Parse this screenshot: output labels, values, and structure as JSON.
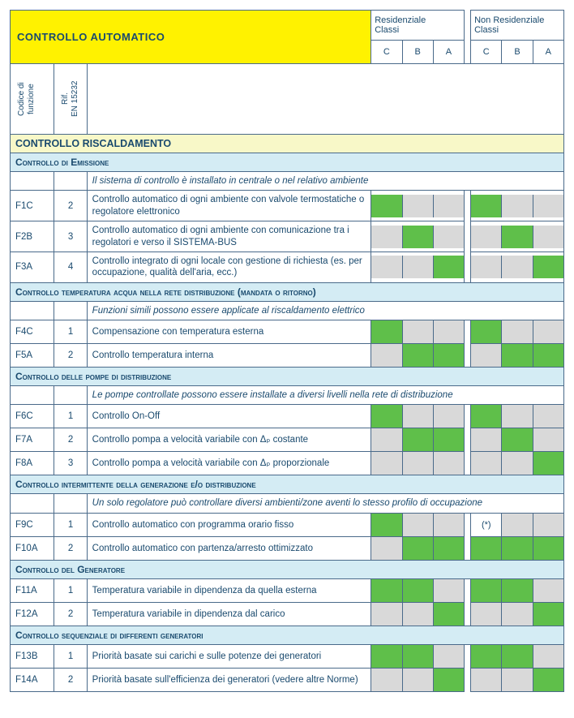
{
  "colors": {
    "green": "#5fbf4a",
    "gray": "#d9d9d9",
    "white": "#ffffff"
  },
  "title": "CONTROLLO AUTOMATICO",
  "header": {
    "res": "Residenziale\nClassi",
    "nonres": "Non Residenziale\nClassi",
    "classes": [
      "C",
      "B",
      "A"
    ]
  },
  "vlabels": {
    "code": "Codice di\nfunzione",
    "ref": "Rif.\nEN 15232"
  },
  "sections": [
    {
      "type": "yellow",
      "label": "CONTROLLO RISCALDAMENTO"
    },
    {
      "type": "blue",
      "label": "Controllo di Emissione"
    },
    {
      "type": "note",
      "text": "Il sistema di controllo è installato in centrale o nel relativo ambiente"
    },
    {
      "type": "row",
      "code": "F1C",
      "ref": "2",
      "desc": "Controllo automatico di ogni ambiente con valvole termostatiche o regolatore elettronico",
      "res": [
        "green",
        "gray",
        "gray"
      ],
      "nonres": [
        "green",
        "gray",
        "gray"
      ]
    },
    {
      "type": "row",
      "code": "F2B",
      "ref": "3",
      "desc": "Controllo automatico di ogni ambiente con comunicazione tra i regolatori e verso il SISTEMA-BUS",
      "res": [
        "gray",
        "green",
        "gray"
      ],
      "nonres": [
        "gray",
        "green",
        "gray"
      ]
    },
    {
      "type": "row",
      "code": "F3A",
      "ref": "4",
      "desc": "Controllo integrato di ogni locale con gestione di richiesta (es. per occupazione, qualità dell'aria, ecc.)",
      "res": [
        "gray",
        "gray",
        "green"
      ],
      "nonres": [
        "gray",
        "gray",
        "green"
      ]
    },
    {
      "type": "blue",
      "label": "Controllo temperatura acqua nella rete distribuzione (mandata o ritorno)"
    },
    {
      "type": "note",
      "text": "Funzioni simili possono essere applicate al riscaldamento elettrico"
    },
    {
      "type": "row",
      "code": "F4C",
      "ref": "1",
      "desc": "Compensazione con temperatura esterna",
      "res": [
        "green",
        "gray",
        "gray"
      ],
      "nonres": [
        "green",
        "gray",
        "gray"
      ]
    },
    {
      "type": "row",
      "code": "F5A",
      "ref": "2",
      "desc": "Controllo temperatura interna",
      "res": [
        "gray",
        "green",
        "green"
      ],
      "nonres": [
        "gray",
        "green",
        "green"
      ]
    },
    {
      "type": "blue",
      "label": "Controllo delle pompe di distribuzione"
    },
    {
      "type": "note",
      "text": "Le pompe controllate possono essere installate a diversi livelli nella rete di distribuzione"
    },
    {
      "type": "row",
      "code": "F6C",
      "ref": "1",
      "desc": "Controllo On-Off",
      "res": [
        "green",
        "gray",
        "gray"
      ],
      "nonres": [
        "green",
        "gray",
        "gray"
      ]
    },
    {
      "type": "row",
      "code": "F7A",
      "ref": "2",
      "desc": "Controllo pompa a velocità variabile con Δₚ costante",
      "res": [
        "gray",
        "green",
        "green"
      ],
      "nonres": [
        "gray",
        "green",
        "gray"
      ]
    },
    {
      "type": "row",
      "code": "F8A",
      "ref": "3",
      "desc": "Controllo pompa a velocità variabile con Δₚ proporzionale",
      "res": [
        "gray",
        "gray",
        "gray"
      ],
      "nonres": [
        "gray",
        "gray",
        "green"
      ]
    },
    {
      "type": "blue",
      "label": "Controllo intermittente della generazione e/o distribuzione"
    },
    {
      "type": "note",
      "text": "Un solo regolatore può controllare diversi ambienti/zone aventi lo stesso profilo di occupazione"
    },
    {
      "type": "row",
      "code": "F9C",
      "ref": "1",
      "desc": "Controllo automatico con programma orario fisso",
      "res": [
        "green",
        "gray",
        "gray"
      ],
      "nonres": [
        "white",
        "gray",
        "gray"
      ],
      "nonres_text": [
        "(*)",
        "",
        ""
      ]
    },
    {
      "type": "row",
      "code": "F10A",
      "ref": "2",
      "desc": "Controllo automatico con partenza/arresto ottimizzato",
      "res": [
        "gray",
        "green",
        "green"
      ],
      "nonres": [
        "green",
        "green",
        "green"
      ]
    },
    {
      "type": "blue",
      "label": "Controllo del Generatore"
    },
    {
      "type": "row",
      "code": "F11A",
      "ref": "1",
      "desc": "Temperatura variabile in dipendenza da quella esterna",
      "res": [
        "green",
        "green",
        "gray"
      ],
      "nonres": [
        "green",
        "green",
        "gray"
      ]
    },
    {
      "type": "row",
      "code": "F12A",
      "ref": "2",
      "desc": "Temperatura variabile in dipendenza dal carico",
      "res": [
        "gray",
        "gray",
        "green"
      ],
      "nonres": [
        "gray",
        "gray",
        "green"
      ]
    },
    {
      "type": "blue",
      "label": "Controllo sequenziale di differenti generatori"
    },
    {
      "type": "row",
      "code": "F13B",
      "ref": "1",
      "desc": "Priorità basate sui carichi e sulle potenze dei generatori",
      "res": [
        "green",
        "green",
        "gray"
      ],
      "nonres": [
        "green",
        "green",
        "gray"
      ]
    },
    {
      "type": "row",
      "code": "F14A",
      "ref": "2",
      "desc": "Priorità basate sull'efficienza dei generatori (vedere altre Norme)",
      "res": [
        "gray",
        "gray",
        "green"
      ],
      "nonres": [
        "gray",
        "gray",
        "green"
      ]
    }
  ]
}
